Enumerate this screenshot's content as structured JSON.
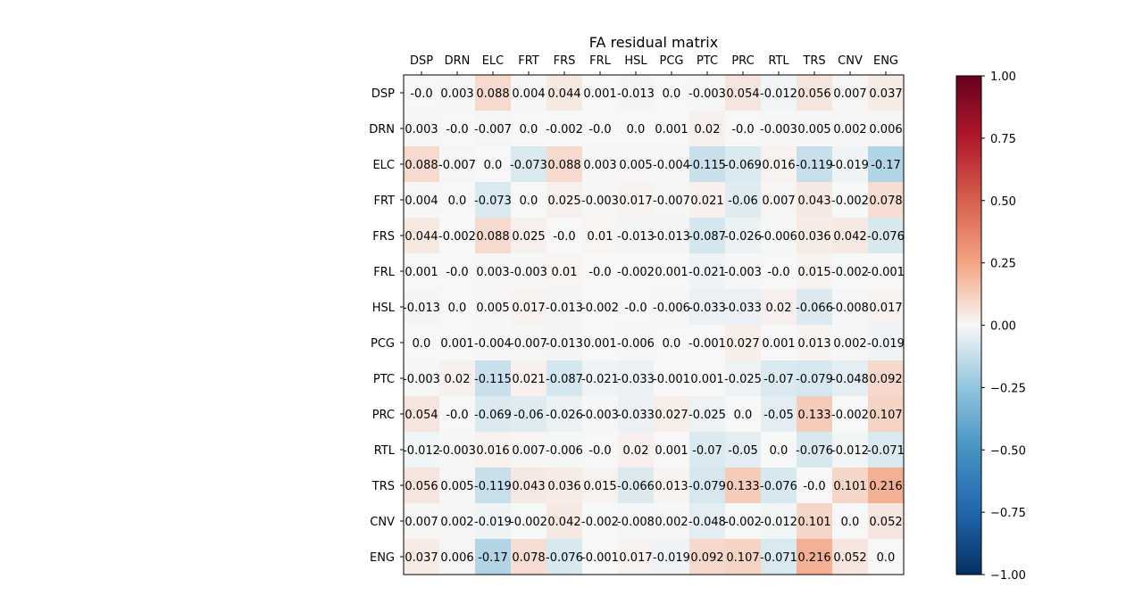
{
  "chart_data": {
    "type": "heatmap",
    "title": "FA residual matrix",
    "labels": [
      "DSP",
      "DRN",
      "ELC",
      "FRT",
      "FRS",
      "FRL",
      "HSL",
      "PCG",
      "PTC",
      "PRC",
      "RTL",
      "TRS",
      "CNV",
      "ENG"
    ],
    "cell_labels": [
      [
        "-0.0",
        "0.003",
        "0.088",
        "0.004",
        "0.044",
        "0.001",
        "-0.013",
        "0.0",
        "-0.003",
        "0.054",
        "-0.012",
        "0.056",
        "0.007",
        "0.037"
      ],
      [
        "0.003",
        "-0.0",
        "-0.007",
        "0.0",
        "-0.002",
        "-0.0",
        "0.0",
        "0.001",
        "0.02",
        "-0.0",
        "-0.003",
        "0.005",
        "0.002",
        "0.006"
      ],
      [
        "0.088",
        "-0.007",
        "0.0",
        "-0.073",
        "0.088",
        "0.003",
        "0.005",
        "-0.004",
        "-0.115",
        "-0.069",
        "0.016",
        "-0.119",
        "-0.019",
        "-0.17"
      ],
      [
        "0.004",
        "0.0",
        "-0.073",
        "0.0",
        "0.025",
        "-0.003",
        "0.017",
        "-0.007",
        "0.021",
        "-0.06",
        "0.007",
        "0.043",
        "-0.002",
        "0.078"
      ],
      [
        "0.044",
        "-0.002",
        "0.088",
        "0.025",
        "-0.0",
        "0.01",
        "-0.013",
        "-0.013",
        "-0.087",
        "-0.026",
        "-0.006",
        "0.036",
        "0.042",
        "-0.076"
      ],
      [
        "0.001",
        "-0.0",
        "0.003",
        "-0.003",
        "0.01",
        "-0.0",
        "-0.002",
        "0.001",
        "-0.021",
        "-0.003",
        "-0.0",
        "0.015",
        "-0.002",
        "-0.001"
      ],
      [
        "-0.013",
        "0.0",
        "0.005",
        "0.017",
        "-0.013",
        "-0.002",
        "-0.0",
        "-0.006",
        "-0.033",
        "-0.033",
        "0.02",
        "-0.066",
        "-0.008",
        "0.017"
      ],
      [
        "0.0",
        "0.001",
        "-0.004",
        "-0.007",
        "-0.013",
        "0.001",
        "-0.006",
        "0.0",
        "-0.001",
        "0.027",
        "0.001",
        "0.013",
        "0.002",
        "-0.019"
      ],
      [
        "-0.003",
        "0.02",
        "-0.115",
        "0.021",
        "-0.087",
        "-0.021",
        "-0.033",
        "-0.001",
        "0.001",
        "-0.025",
        "-0.07",
        "-0.079",
        "-0.048",
        "0.092"
      ],
      [
        "0.054",
        "-0.0",
        "-0.069",
        "-0.06",
        "-0.026",
        "-0.003",
        "-0.033",
        "0.027",
        "-0.025",
        "0.0",
        "-0.05",
        "0.133",
        "-0.002",
        "0.107"
      ],
      [
        "-0.012",
        "-0.003",
        "0.016",
        "0.007",
        "-0.006",
        "-0.0",
        "0.02",
        "0.001",
        "-0.07",
        "-0.05",
        "0.0",
        "-0.076",
        "-0.012",
        "-0.071"
      ],
      [
        "0.056",
        "0.005",
        "-0.119",
        "0.043",
        "0.036",
        "0.015",
        "-0.066",
        "0.013",
        "-0.079",
        "0.133",
        "-0.076",
        "-0.0",
        "0.101",
        "0.216"
      ],
      [
        "0.007",
        "0.002",
        "-0.019",
        "-0.002",
        "0.042",
        "-0.002",
        "-0.008",
        "0.002",
        "-0.048",
        "-0.002",
        "-0.012",
        "0.101",
        "0.0",
        "0.052"
      ],
      [
        "0.037",
        "0.006",
        "-0.17",
        "0.078",
        "-0.076",
        "-0.001",
        "0.017",
        "-0.019",
        "0.092",
        "0.107",
        "-0.071",
        "0.216",
        "0.052",
        "0.0"
      ]
    ],
    "colorbar": {
      "min": -1.0,
      "max": 1.0,
      "tick_labels": [
        "1.00",
        "0.75",
        "0.50",
        "0.25",
        "0.00",
        "−0.25",
        "−0.50",
        "−0.75",
        "−1.00"
      ],
      "tick_values": [
        1.0,
        0.75,
        0.5,
        0.25,
        0.0,
        -0.25,
        -0.5,
        -0.75,
        -1.0
      ],
      "colormap": "RdBu_r"
    },
    "xaxis_position": "top",
    "grid": false
  }
}
